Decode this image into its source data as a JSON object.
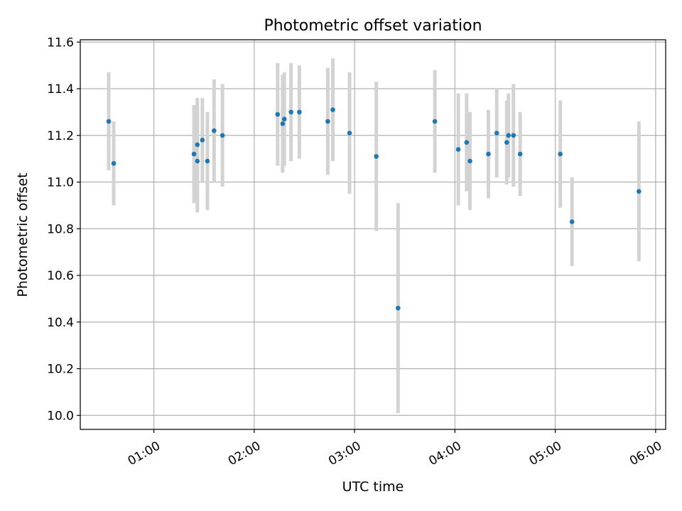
{
  "chart_data": {
    "type": "scatter",
    "title": "Photometric offset variation",
    "xlabel": "UTC time",
    "ylabel": "Photometric offset",
    "xlim": [
      "00:16",
      "06:06"
    ],
    "ylim": [
      9.94,
      11.61
    ],
    "x_ticks": [
      "01:00",
      "02:00",
      "03:00",
      "04:00",
      "05:00",
      "06:00"
    ],
    "y_ticks": [
      "10.0",
      "10.2",
      "10.4",
      "10.6",
      "10.8",
      "11.0",
      "11.2",
      "11.4",
      "11.6"
    ],
    "grid": true,
    "colors": {
      "point": "#1f77b4",
      "errorbar": "#d3d3d3",
      "grid": "#b0b0b0",
      "axes": "#000000"
    },
    "series": [
      {
        "points": [
          {
            "x": "00:33",
            "y": 11.26,
            "err": 0.21
          },
          {
            "x": "00:36",
            "y": 11.08,
            "err": 0.18
          },
          {
            "x": "01:24",
            "y": 11.12,
            "err": 0.21
          },
          {
            "x": "01:26",
            "y": 11.09,
            "err": 0.22
          },
          {
            "x": "01:26",
            "y": 11.16,
            "err": 0.2
          },
          {
            "x": "01:29",
            "y": 11.18,
            "err": 0.18
          },
          {
            "x": "01:32",
            "y": 11.09,
            "err": 0.21
          },
          {
            "x": "01:36",
            "y": 11.22,
            "err": 0.22
          },
          {
            "x": "01:41",
            "y": 11.2,
            "err": 0.22
          },
          {
            "x": "02:14",
            "y": 11.29,
            "err": 0.22
          },
          {
            "x": "02:17",
            "y": 11.25,
            "err": 0.21
          },
          {
            "x": "02:18",
            "y": 11.27,
            "err": 0.2
          },
          {
            "x": "02:22",
            "y": 11.3,
            "err": 0.21
          },
          {
            "x": "02:27",
            "y": 11.3,
            "err": 0.2
          },
          {
            "x": "02:44",
            "y": 11.26,
            "err": 0.23
          },
          {
            "x": "02:47",
            "y": 11.31,
            "err": 0.22
          },
          {
            "x": "02:57",
            "y": 11.21,
            "err": 0.26
          },
          {
            "x": "03:13",
            "y": 11.11,
            "err": 0.32
          },
          {
            "x": "03:26",
            "y": 10.46,
            "err": 0.45
          },
          {
            "x": "03:48",
            "y": 11.26,
            "err": 0.22
          },
          {
            "x": "04:02",
            "y": 11.14,
            "err": 0.24
          },
          {
            "x": "04:07",
            "y": 11.17,
            "err": 0.21
          },
          {
            "x": "04:09",
            "y": 11.09,
            "err": 0.21
          },
          {
            "x": "04:20",
            "y": 11.12,
            "err": 0.19
          },
          {
            "x": "04:25",
            "y": 11.21,
            "err": 0.19
          },
          {
            "x": "04:31",
            "y": 11.17,
            "err": 0.18
          },
          {
            "x": "04:32",
            "y": 11.2,
            "err": 0.18
          },
          {
            "x": "04:35",
            "y": 11.2,
            "err": 0.22
          },
          {
            "x": "04:39",
            "y": 11.12,
            "err": 0.18
          },
          {
            "x": "05:03",
            "y": 11.12,
            "err": 0.23
          },
          {
            "x": "05:10",
            "y": 10.83,
            "err": 0.19
          },
          {
            "x": "05:50",
            "y": 10.96,
            "err": 0.3
          }
        ]
      }
    ]
  }
}
